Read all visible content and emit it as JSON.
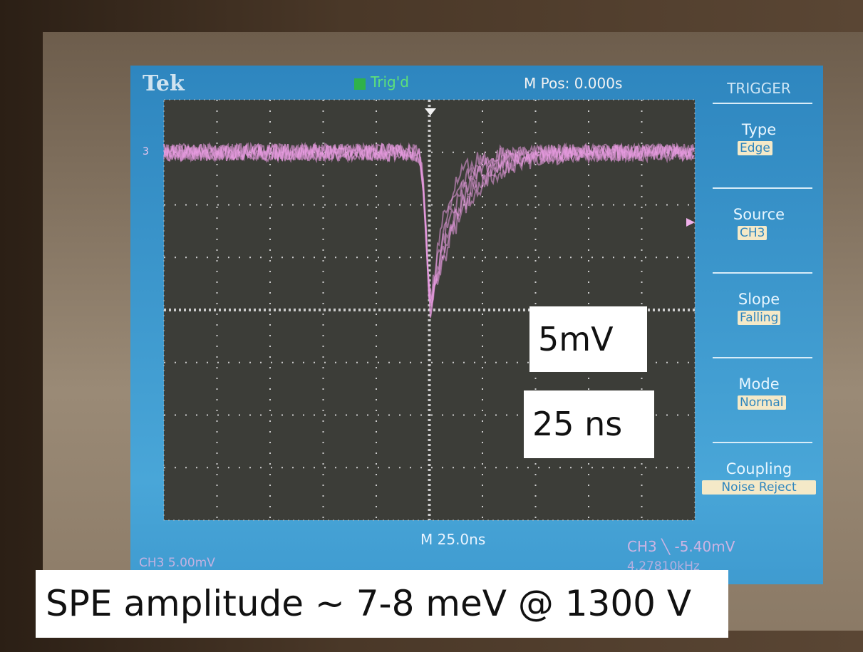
{
  "screen": {
    "brand": "Tek",
    "trigger_status": "Trig'd",
    "position": "M Pos: 0.000s",
    "channel_marker": "3",
    "timebase": "M 25.0ns",
    "ch_scale": "CH3 5.00mV",
    "trigger_level": "CH3 ╲ -5.40mV",
    "frequency": "4.27810kHz"
  },
  "menu": {
    "title": "TRIGGER",
    "items": [
      {
        "label": "Type",
        "value": "Edge"
      },
      {
        "label": "Source",
        "value": "CH3"
      },
      {
        "label": "Slope",
        "value": "Falling"
      },
      {
        "label": "Mode",
        "value": "Normal"
      },
      {
        "label": "Coupling",
        "value": "Noise Reject"
      }
    ]
  },
  "annotations": {
    "volts": "5mV",
    "time": "25 ns",
    "caption": "SPE amplitude ~ 7-8 meV @ 1300 V"
  }
}
